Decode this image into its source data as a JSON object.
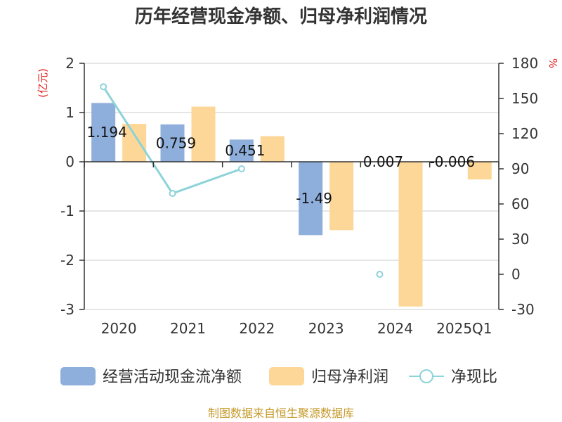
{
  "title": "历年经营现金净额、归母净利润情况",
  "source": "制图数据来自恒生聚源数据库",
  "left_unit": "(亿元)",
  "right_unit": "%",
  "colors": {
    "cash": "#8eaedb",
    "profit": "#fdd797",
    "ratio": "#8dd3d8",
    "axis": "#333333",
    "grid": "#cccccc",
    "unit": "#e02020",
    "source": "#c59a2b"
  },
  "chart_data": {
    "type": "bar",
    "categories": [
      "2020",
      "2021",
      "2022",
      "2023",
      "2024",
      "2025Q1"
    ],
    "series": [
      {
        "name": "经营活动现金流净额",
        "type": "bar",
        "axis": "left",
        "values": [
          1.194,
          0.759,
          0.451,
          -1.49,
          0.007,
          -0.006
        ],
        "labels": [
          "1.194",
          "0.759",
          "0.451",
          "-1.49",
          "0.007",
          "-0.006"
        ]
      },
      {
        "name": "归母净利润",
        "type": "bar",
        "axis": "left",
        "values": [
          0.77,
          1.12,
          0.52,
          -1.39,
          -2.94,
          -0.36
        ]
      },
      {
        "name": "净现比",
        "type": "line",
        "axis": "right",
        "values": [
          160,
          69,
          90,
          null,
          0,
          null
        ]
      }
    ],
    "ylim_left": [
      -3,
      2
    ],
    "yticks_left": [
      2,
      1,
      0,
      -1,
      -2,
      -3
    ],
    "ylim_right": [
      -30,
      180
    ],
    "yticks_right": [
      180,
      150,
      120,
      90,
      60,
      30,
      0,
      -30
    ],
    "grid": true,
    "legend": "bottom"
  }
}
